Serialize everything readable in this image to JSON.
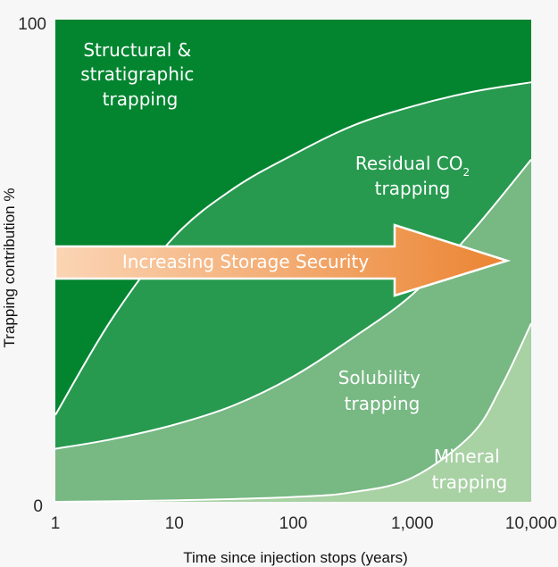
{
  "colors": {
    "structural": "#038530",
    "residual": "#279a4f",
    "solubility": "#77b883",
    "mineral": "#a8d1a4",
    "boundary": "#ffffff",
    "arrow_start": "#fbd5b5",
    "arrow_end": "#eb8432"
  },
  "chart_data": {
    "type": "area",
    "x_scale": "log",
    "xlim": [
      1,
      10000
    ],
    "ylim": [
      0,
      100
    ],
    "xlabel": "Time since injection stops (years)",
    "ylabel": "Trapping contribution %",
    "x_ticks": [
      1,
      10,
      100,
      1000,
      10000
    ],
    "x_tick_labels": [
      "1",
      "10",
      "100",
      "1,000",
      "10,000"
    ],
    "y_ticks": [
      0,
      100
    ],
    "y_tick_labels": [
      "0",
      "100"
    ],
    "grid": false,
    "boundaries": [
      {
        "upper_region": "Structural & stratigraphic trapping",
        "lower_region": "Residual CO2 trapping",
        "points": [
          [
            1,
            18
          ],
          [
            3,
            38
          ],
          [
            10,
            55
          ],
          [
            31.6,
            65
          ],
          [
            100,
            72
          ],
          [
            316,
            78
          ],
          [
            1000,
            82
          ],
          [
            3162,
            85
          ],
          [
            10000,
            87
          ]
        ]
      },
      {
        "upper_region": "Residual CO2 trapping",
        "lower_region": "Solubility trapping",
        "points": [
          [
            1,
            11
          ],
          [
            3,
            13
          ],
          [
            10,
            16
          ],
          [
            31.6,
            20
          ],
          [
            100,
            26
          ],
          [
            316,
            34
          ],
          [
            1000,
            43
          ],
          [
            3162,
            56
          ],
          [
            10000,
            71
          ]
        ]
      },
      {
        "upper_region": "Solubility trapping",
        "lower_region": "Mineral trapping",
        "points": [
          [
            1,
            0
          ],
          [
            10,
            0.3
          ],
          [
            100,
            1
          ],
          [
            316,
            2
          ],
          [
            1000,
            5
          ],
          [
            3162,
            14
          ],
          [
            5623,
            24
          ],
          [
            10000,
            37
          ]
        ]
      }
    ],
    "annotation_arrow": "Increasing Storage Security"
  },
  "labels": {
    "structural": [
      "Structural &",
      "stratigraphic",
      "trapping"
    ],
    "residual_main": "Residual CO",
    "residual_sub": "2",
    "residual_line2": "trapping",
    "solubility": [
      "Solubility",
      "trapping"
    ],
    "mineral": [
      "Mineral",
      "trapping"
    ]
  }
}
